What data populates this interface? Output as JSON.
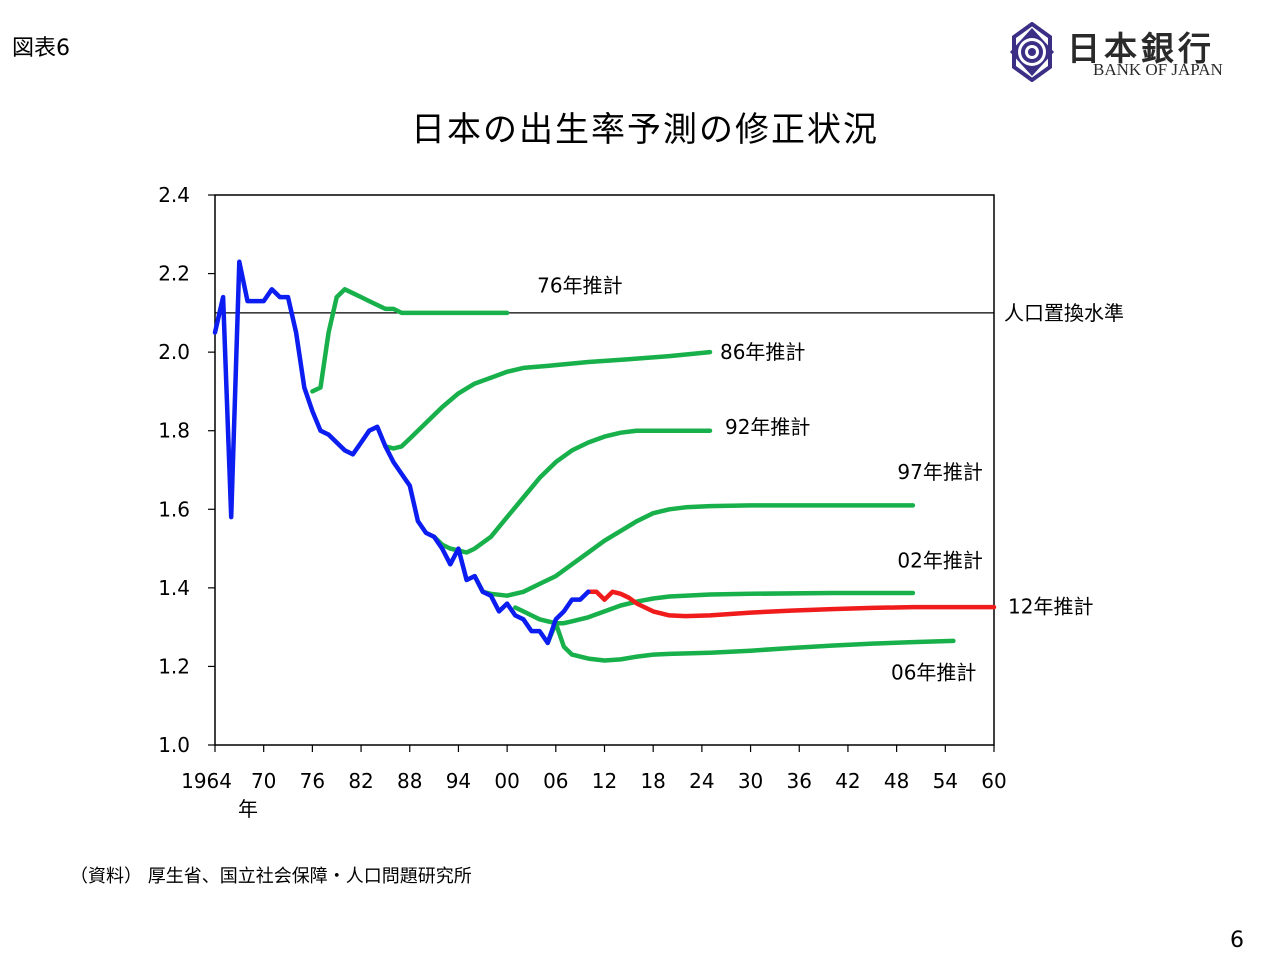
{
  "header": {
    "figure_label": "図表6",
    "logo_text_jp": "日本銀行",
    "logo_text_en": "BANK OF JAPAN"
  },
  "title": "日本の出生率予測の修正状況",
  "footer": {
    "source": "（資料） 厚生省、国立社会保障・人口問題研究所",
    "page_number": "6"
  },
  "colors": {
    "actual": "#0b1df0",
    "projection": "#18b04a",
    "projection_2012": "#f01b1b",
    "reference_line": "#000000"
  },
  "chart_data": {
    "type": "line",
    "title": "日本の出生率予測の修正状況",
    "xlim": [
      1964,
      2060
    ],
    "ylim": [
      1.0,
      2.4
    ],
    "y_ticks": [
      1.0,
      1.2,
      1.4,
      1.6,
      1.8,
      2.0,
      2.2,
      2.4
    ],
    "y_tick_labels": [
      "1.0",
      "1.2",
      "1.4",
      "1.6",
      "1.8",
      "2.0",
      "2.2",
      "2.4"
    ],
    "x_ticks": [
      1964,
      1970,
      1976,
      1982,
      1988,
      1994,
      2000,
      2006,
      2012,
      2018,
      2024,
      2030,
      2036,
      2042,
      2048,
      2054,
      2060
    ],
    "x_tick_labels": [
      "1964",
      "70",
      "76",
      "82",
      "88",
      "94",
      "00",
      "06",
      "12",
      "18",
      "24",
      "30",
      "36",
      "42",
      "48",
      "54",
      "60"
    ],
    "x_unit_label": "年",
    "reference_line": {
      "y": 2.1,
      "label": "人口置換水準"
    },
    "series": [
      {
        "name": "",
        "role": "actual",
        "color": "#0b1df0",
        "points": [
          [
            1964,
            2.05
          ],
          [
            1965,
            2.14
          ],
          [
            1966,
            1.58
          ],
          [
            1967,
            2.23
          ],
          [
            1968,
            2.13
          ],
          [
            1969,
            2.13
          ],
          [
            1970,
            2.13
          ],
          [
            1971,
            2.16
          ],
          [
            1972,
            2.14
          ],
          [
            1973,
            2.14
          ],
          [
            1974,
            2.05
          ],
          [
            1975,
            1.91
          ],
          [
            1976,
            1.85
          ],
          [
            1977,
            1.8
          ],
          [
            1978,
            1.79
          ],
          [
            1979,
            1.77
          ],
          [
            1980,
            1.75
          ],
          [
            1981,
            1.74
          ],
          [
            1982,
            1.77
          ],
          [
            1983,
            1.8
          ],
          [
            1984,
            1.81
          ],
          [
            1985,
            1.76
          ],
          [
            1986,
            1.72
          ],
          [
            1987,
            1.69
          ],
          [
            1988,
            1.66
          ],
          [
            1989,
            1.57
          ],
          [
            1990,
            1.54
          ],
          [
            1991,
            1.53
          ],
          [
            1992,
            1.5
          ],
          [
            1993,
            1.46
          ],
          [
            1994,
            1.5
          ],
          [
            1995,
            1.42
          ],
          [
            1996,
            1.43
          ],
          [
            1997,
            1.39
          ],
          [
            1998,
            1.38
          ],
          [
            1999,
            1.34
          ],
          [
            2000,
            1.36
          ],
          [
            2001,
            1.33
          ],
          [
            2002,
            1.32
          ],
          [
            2003,
            1.29
          ],
          [
            2004,
            1.29
          ],
          [
            2005,
            1.26
          ],
          [
            2006,
            1.32
          ],
          [
            2007,
            1.34
          ],
          [
            2008,
            1.37
          ],
          [
            2009,
            1.37
          ],
          [
            2010,
            1.39
          ]
        ]
      },
      {
        "name": "76年推計",
        "color": "#18b04a",
        "points": [
          [
            1976,
            1.9
          ],
          [
            1977,
            1.91
          ],
          [
            1978,
            2.05
          ],
          [
            1979,
            2.14
          ],
          [
            1980,
            2.16
          ],
          [
            1981,
            2.15
          ],
          [
            1982,
            2.14
          ],
          [
            1983,
            2.13
          ],
          [
            1984,
            2.12
          ],
          [
            1985,
            2.11
          ],
          [
            1986,
            2.11
          ],
          [
            1987,
            2.1
          ],
          [
            1990,
            2.1
          ],
          [
            1995,
            2.1
          ],
          [
            2000,
            2.1
          ]
        ]
      },
      {
        "name": "86年推計",
        "color": "#18b04a",
        "points": [
          [
            1985,
            1.76
          ],
          [
            1986,
            1.755
          ],
          [
            1987,
            1.76
          ],
          [
            1988,
            1.78
          ],
          [
            1990,
            1.82
          ],
          [
            1992,
            1.86
          ],
          [
            1994,
            1.895
          ],
          [
            1996,
            1.92
          ],
          [
            1998,
            1.935
          ],
          [
            2000,
            1.95
          ],
          [
            2002,
            1.96
          ],
          [
            2005,
            1.965
          ],
          [
            2010,
            1.975
          ],
          [
            2015,
            1.982
          ],
          [
            2020,
            1.99
          ],
          [
            2025,
            2.0
          ]
        ]
      },
      {
        "name": "92年推計",
        "color": "#18b04a",
        "points": [
          [
            1991,
            1.53
          ],
          [
            1992,
            1.51
          ],
          [
            1993,
            1.5
          ],
          [
            1994,
            1.495
          ],
          [
            1995,
            1.49
          ],
          [
            1996,
            1.5
          ],
          [
            1998,
            1.53
          ],
          [
            2000,
            1.58
          ],
          [
            2002,
            1.63
          ],
          [
            2004,
            1.68
          ],
          [
            2006,
            1.72
          ],
          [
            2008,
            1.75
          ],
          [
            2010,
            1.77
          ],
          [
            2012,
            1.785
          ],
          [
            2014,
            1.795
          ],
          [
            2016,
            1.8
          ],
          [
            2020,
            1.8
          ],
          [
            2025,
            1.8
          ]
        ]
      },
      {
        "name": "97年推計",
        "color": "#18b04a",
        "points": [
          [
            1996,
            1.43
          ],
          [
            1997,
            1.39
          ],
          [
            1998,
            1.385
          ],
          [
            2000,
            1.38
          ],
          [
            2002,
            1.39
          ],
          [
            2004,
            1.41
          ],
          [
            2006,
            1.43
          ],
          [
            2008,
            1.46
          ],
          [
            2010,
            1.49
          ],
          [
            2012,
            1.52
          ],
          [
            2014,
            1.545
          ],
          [
            2016,
            1.57
          ],
          [
            2018,
            1.59
          ],
          [
            2020,
            1.6
          ],
          [
            2022,
            1.605
          ],
          [
            2025,
            1.608
          ],
          [
            2030,
            1.61
          ],
          [
            2040,
            1.61
          ],
          [
            2050,
            1.61
          ]
        ]
      },
      {
        "name": "02年推計",
        "color": "#18b04a",
        "points": [
          [
            2001,
            1.35
          ],
          [
            2002,
            1.34
          ],
          [
            2003,
            1.33
          ],
          [
            2004,
            1.32
          ],
          [
            2005,
            1.315
          ],
          [
            2006,
            1.31
          ],
          [
            2007,
            1.31
          ],
          [
            2008,
            1.315
          ],
          [
            2010,
            1.325
          ],
          [
            2012,
            1.34
          ],
          [
            2014,
            1.355
          ],
          [
            2016,
            1.365
          ],
          [
            2018,
            1.373
          ],
          [
            2020,
            1.378
          ],
          [
            2025,
            1.383
          ],
          [
            2030,
            1.385
          ],
          [
            2040,
            1.387
          ],
          [
            2050,
            1.387
          ]
        ]
      },
      {
        "name": "06年推計",
        "color": "#18b04a",
        "points": [
          [
            2005,
            1.26
          ],
          [
            2006,
            1.31
          ],
          [
            2007,
            1.25
          ],
          [
            2008,
            1.23
          ],
          [
            2010,
            1.22
          ],
          [
            2012,
            1.215
          ],
          [
            2014,
            1.218
          ],
          [
            2016,
            1.225
          ],
          [
            2018,
            1.23
          ],
          [
            2020,
            1.232
          ],
          [
            2025,
            1.235
          ],
          [
            2030,
            1.24
          ],
          [
            2035,
            1.247
          ],
          [
            2040,
            1.253
          ],
          [
            2045,
            1.258
          ],
          [
            2050,
            1.262
          ],
          [
            2055,
            1.265
          ]
        ]
      },
      {
        "name": "12年推計",
        "color": "#f01b1b",
        "points": [
          [
            2010,
            1.39
          ],
          [
            2011,
            1.39
          ],
          [
            2012,
            1.37
          ],
          [
            2013,
            1.39
          ],
          [
            2014,
            1.385
          ],
          [
            2015,
            1.375
          ],
          [
            2016,
            1.36
          ],
          [
            2018,
            1.34
          ],
          [
            2020,
            1.33
          ],
          [
            2022,
            1.328
          ],
          [
            2025,
            1.33
          ],
          [
            2030,
            1.337
          ],
          [
            2035,
            1.342
          ],
          [
            2040,
            1.346
          ],
          [
            2045,
            1.349
          ],
          [
            2050,
            1.351
          ],
          [
            2055,
            1.351
          ],
          [
            2060,
            1.351
          ]
        ]
      }
    ]
  }
}
